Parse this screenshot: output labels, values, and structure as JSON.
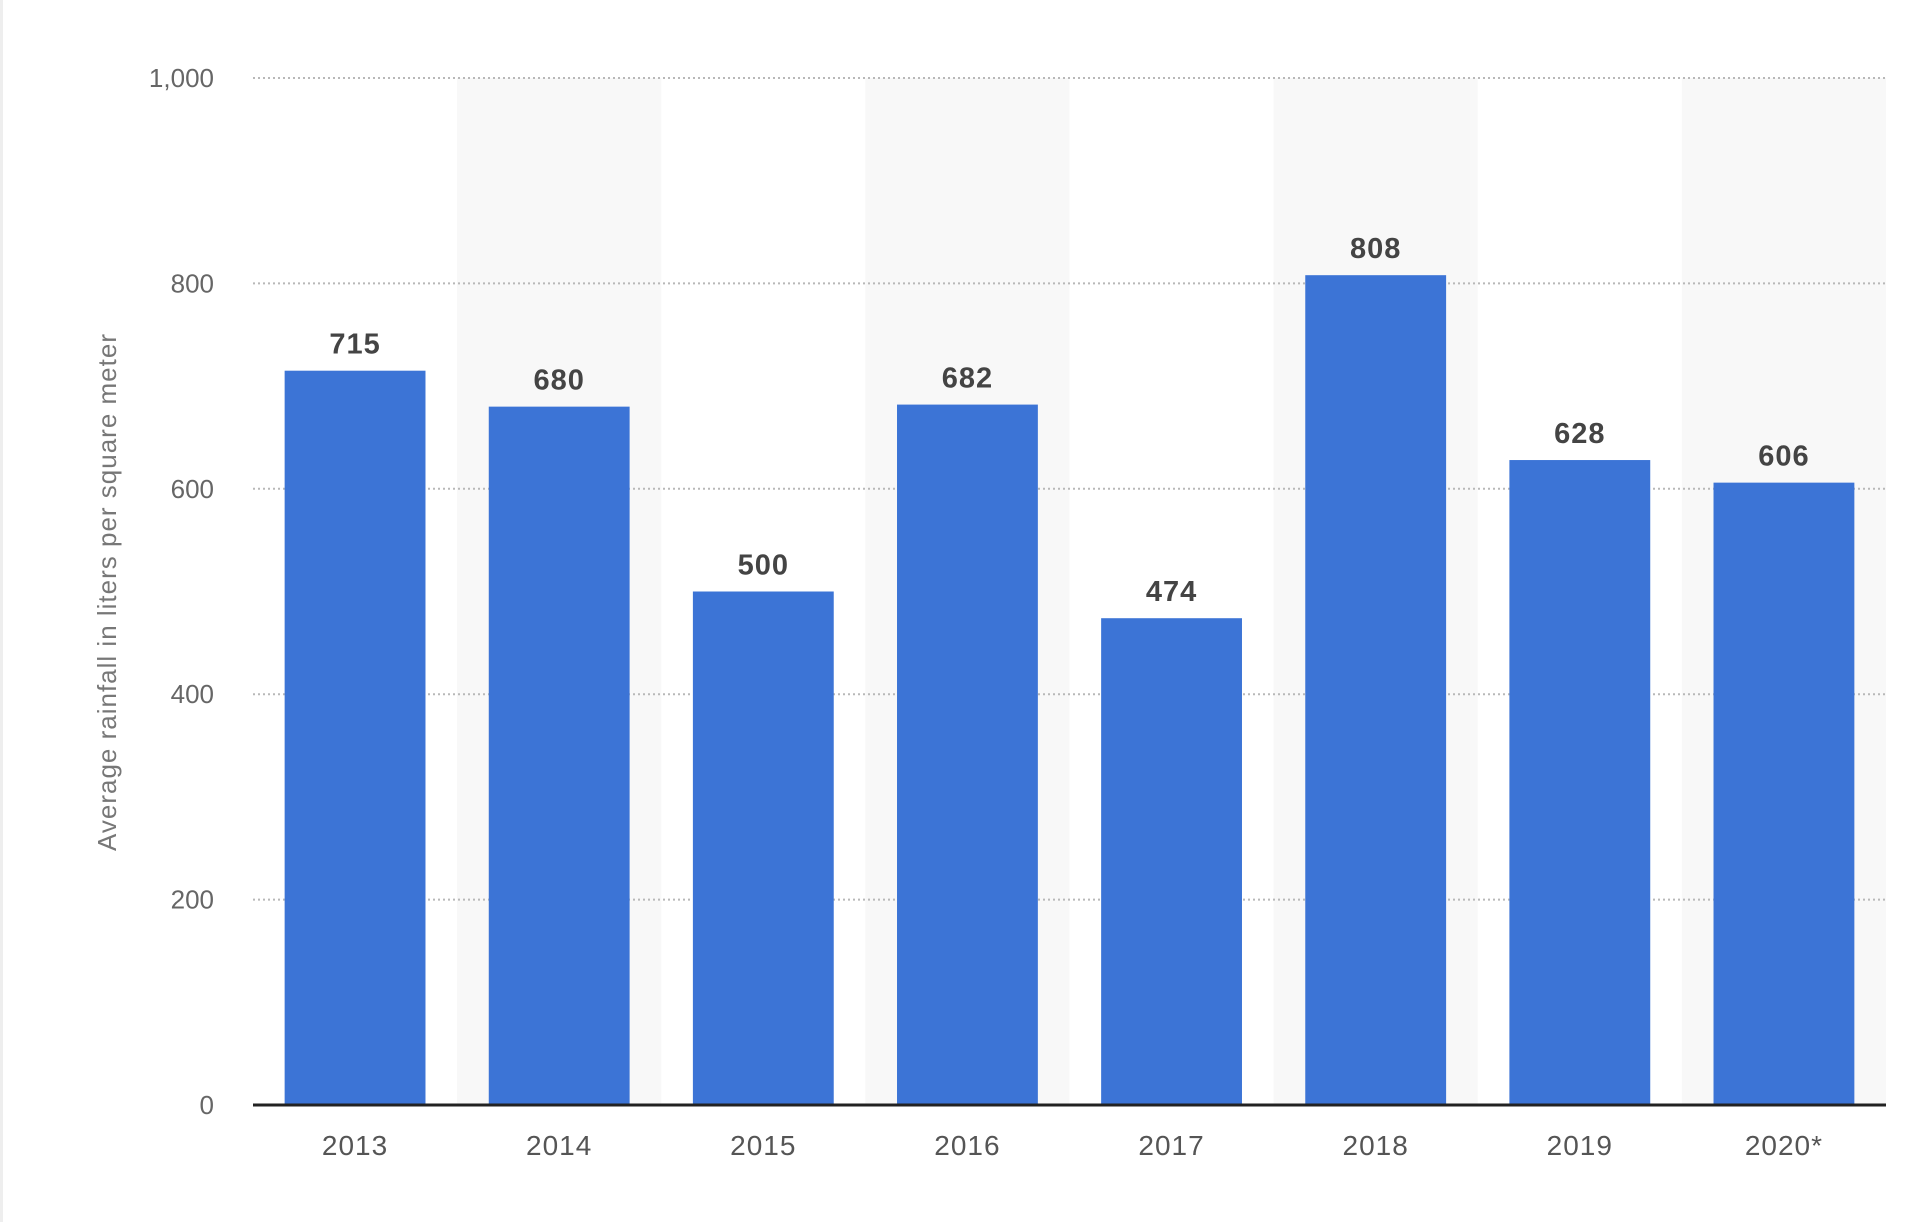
{
  "chart_data": {
    "type": "bar",
    "title": "",
    "xlabel": "",
    "ylabel": "Average rainfall in liters per square meter",
    "categories": [
      "2013",
      "2014",
      "2015",
      "2016",
      "2017",
      "2018",
      "2019",
      "2020*"
    ],
    "series": [
      {
        "values": [
          715,
          680,
          500,
          682,
          474,
          808,
          628,
          606
        ]
      }
    ],
    "ylim": [
      0,
      1000
    ],
    "yticks": [
      0,
      200,
      400,
      600,
      800,
      1000
    ],
    "ytick_labels": [
      "0",
      "200",
      "400",
      "600",
      "800",
      "1,000"
    ],
    "data_labels": [
      "715",
      "680",
      "500",
      "682",
      "474",
      "808",
      "628",
      "606"
    ],
    "grid": "horizontal dotted",
    "legend": "none",
    "colors": {
      "bar": "#3c74d6",
      "alt_band": "#f8f8f8",
      "grid": "#b8b8b8",
      "axis": "#222222"
    }
  }
}
